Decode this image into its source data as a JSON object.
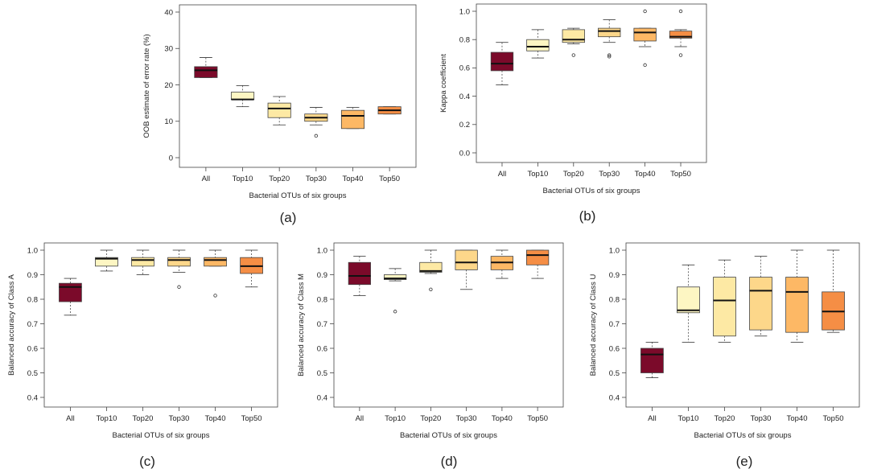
{
  "chart_data": [
    {
      "type": "box",
      "panel_label": "(a)",
      "xlabel": "Bacterial OTUs of six groups",
      "ylabel": "OOB estimate of error rate (%)",
      "ylim": [
        0,
        40
      ],
      "yticks": [
        0,
        10,
        20,
        30,
        40
      ],
      "categories": [
        "All",
        "Top10",
        "Top20",
        "Top30",
        "Top40",
        "Top50"
      ],
      "boxes": [
        {
          "min": 22,
          "q1": 22,
          "median": 24,
          "q3": 25,
          "max": 27.5,
          "outliers": []
        },
        {
          "min": 14,
          "q1": 16,
          "median": 16,
          "q3": 18,
          "max": 19.8,
          "outliers": []
        },
        {
          "min": 9,
          "q1": 11,
          "median": 13.5,
          "q3": 15,
          "max": 16.8,
          "outliers": []
        },
        {
          "min": 9,
          "q1": 10,
          "median": 11,
          "q3": 12,
          "max": 13.8,
          "outliers": [
            6
          ]
        },
        {
          "min": 8,
          "q1": 8,
          "median": 11.5,
          "q3": 13,
          "max": 13.8,
          "outliers": []
        },
        {
          "min": 12,
          "q1": 12,
          "median": 13,
          "q3": 14,
          "max": 14,
          "outliers": []
        }
      ],
      "colors": [
        "#7b0a2a",
        "#fdf6c3",
        "#fde9a4",
        "#fdd78a",
        "#fdb865",
        "#f58e45"
      ]
    },
    {
      "type": "box",
      "panel_label": "(b)",
      "xlabel": "Bacterial OTUs of six groups",
      "ylabel": "Kappa coefficient",
      "ylim": [
        0,
        1
      ],
      "yticks": [
        0.0,
        0.2,
        0.4,
        0.6,
        0.8,
        1.0
      ],
      "categories": [
        "All",
        "Top10",
        "Top20",
        "Top30",
        "Top40",
        "Top50"
      ],
      "boxes": [
        {
          "min": 0.48,
          "q1": 0.58,
          "median": 0.63,
          "q3": 0.71,
          "max": 0.78,
          "outliers": []
        },
        {
          "min": 0.67,
          "q1": 0.72,
          "median": 0.75,
          "q3": 0.8,
          "max": 0.87,
          "outliers": []
        },
        {
          "min": 0.77,
          "q1": 0.78,
          "median": 0.8,
          "q3": 0.87,
          "max": 0.88,
          "outliers": [
            0.69
          ]
        },
        {
          "min": 0.78,
          "q1": 0.82,
          "median": 0.86,
          "q3": 0.88,
          "max": 0.94,
          "outliers": [
            0.69,
            0.68
          ]
        },
        {
          "min": 0.75,
          "q1": 0.79,
          "median": 0.85,
          "q3": 0.88,
          "max": 0.88,
          "outliers": [
            1.0,
            0.62
          ]
        },
        {
          "min": 0.75,
          "q1": 0.81,
          "median": 0.82,
          "q3": 0.86,
          "max": 0.87,
          "outliers": [
            1.0,
            0.69
          ]
        }
      ],
      "colors": [
        "#7b0a2a",
        "#fdf6c3",
        "#fde9a4",
        "#fdd78a",
        "#fdb865",
        "#f58e45"
      ]
    },
    {
      "type": "box",
      "panel_label": "(c)",
      "xlabel": "Bacterial OTUs of six groups",
      "ylabel": "Balanced accuracy of Class A",
      "ylim": [
        0.4,
        1.0
      ],
      "yticks": [
        0.4,
        0.5,
        0.6,
        0.7,
        0.8,
        0.9,
        1.0
      ],
      "categories": [
        "All",
        "Top10",
        "Top20",
        "Top30",
        "Top40",
        "Top50"
      ],
      "boxes": [
        {
          "min": 0.735,
          "q1": 0.79,
          "median": 0.85,
          "q3": 0.865,
          "max": 0.885,
          "outliers": []
        },
        {
          "min": 0.915,
          "q1": 0.935,
          "median": 0.965,
          "q3": 0.97,
          "max": 1.0,
          "outliers": []
        },
        {
          "min": 0.9,
          "q1": 0.935,
          "median": 0.96,
          "q3": 0.97,
          "max": 1.0,
          "outliers": []
        },
        {
          "min": 0.91,
          "q1": 0.935,
          "median": 0.96,
          "q3": 0.97,
          "max": 1.0,
          "outliers": [
            0.85
          ]
        },
        {
          "min": 0.935,
          "q1": 0.935,
          "median": 0.96,
          "q3": 0.97,
          "max": 1.0,
          "outliers": [
            0.815
          ]
        },
        {
          "min": 0.85,
          "q1": 0.905,
          "median": 0.935,
          "q3": 0.97,
          "max": 1.0,
          "outliers": []
        }
      ],
      "colors": [
        "#7b0a2a",
        "#fdf6c3",
        "#fde9a4",
        "#fdd78a",
        "#fdb865",
        "#f58e45"
      ]
    },
    {
      "type": "box",
      "panel_label": "(d)",
      "xlabel": "Bacterial OTUs of six groups",
      "ylabel": "Balanced accuracy of Class M",
      "ylim": [
        0.4,
        1.0
      ],
      "yticks": [
        0.4,
        0.5,
        0.6,
        0.7,
        0.8,
        0.9,
        1.0
      ],
      "categories": [
        "All",
        "Top10",
        "Top20",
        "Top30",
        "Top40",
        "Top50"
      ],
      "boxes": [
        {
          "min": 0.815,
          "q1": 0.86,
          "median": 0.895,
          "q3": 0.95,
          "max": 0.975,
          "outliers": []
        },
        {
          "min": 0.875,
          "q1": 0.88,
          "median": 0.885,
          "q3": 0.9,
          "max": 0.925,
          "outliers": [
            0.75
          ]
        },
        {
          "min": 0.905,
          "q1": 0.91,
          "median": 0.915,
          "q3": 0.95,
          "max": 1.0,
          "outliers": [
            0.84
          ]
        },
        {
          "min": 0.84,
          "q1": 0.92,
          "median": 0.95,
          "q3": 1.0,
          "max": 1.0,
          "outliers": []
        },
        {
          "min": 0.885,
          "q1": 0.92,
          "median": 0.95,
          "q3": 0.975,
          "max": 1.0,
          "outliers": []
        },
        {
          "min": 0.885,
          "q1": 0.94,
          "median": 0.98,
          "q3": 1.0,
          "max": 1.0,
          "outliers": []
        }
      ],
      "colors": [
        "#7b0a2a",
        "#fdf6c3",
        "#fde9a4",
        "#fdd78a",
        "#fdb865",
        "#f58e45"
      ]
    },
    {
      "type": "box",
      "panel_label": "(e)",
      "xlabel": "Bacterial OTUs of six groups",
      "ylabel": "Balanced accuracy of Class U",
      "ylim": [
        0.4,
        1.0
      ],
      "yticks": [
        0.4,
        0.5,
        0.6,
        0.7,
        0.8,
        0.9,
        1.0
      ],
      "categories": [
        "All",
        "Top10",
        "Top20",
        "Top30",
        "Top40",
        "Top50"
      ],
      "boxes": [
        {
          "min": 0.48,
          "q1": 0.5,
          "median": 0.575,
          "q3": 0.6,
          "max": 0.625,
          "outliers": []
        },
        {
          "min": 0.625,
          "q1": 0.745,
          "median": 0.755,
          "q3": 0.85,
          "max": 0.94,
          "outliers": []
        },
        {
          "min": 0.625,
          "q1": 0.65,
          "median": 0.795,
          "q3": 0.89,
          "max": 0.96,
          "outliers": []
        },
        {
          "min": 0.65,
          "q1": 0.675,
          "median": 0.835,
          "q3": 0.89,
          "max": 0.975,
          "outliers": []
        },
        {
          "min": 0.625,
          "q1": 0.665,
          "median": 0.83,
          "q3": 0.89,
          "max": 1.0,
          "outliers": []
        },
        {
          "min": 0.665,
          "q1": 0.675,
          "median": 0.75,
          "q3": 0.83,
          "max": 1.0,
          "outliers": []
        }
      ],
      "colors": [
        "#7b0a2a",
        "#fdf6c3",
        "#fde9a4",
        "#fdd78a",
        "#fdb865",
        "#f58e45"
      ]
    }
  ]
}
